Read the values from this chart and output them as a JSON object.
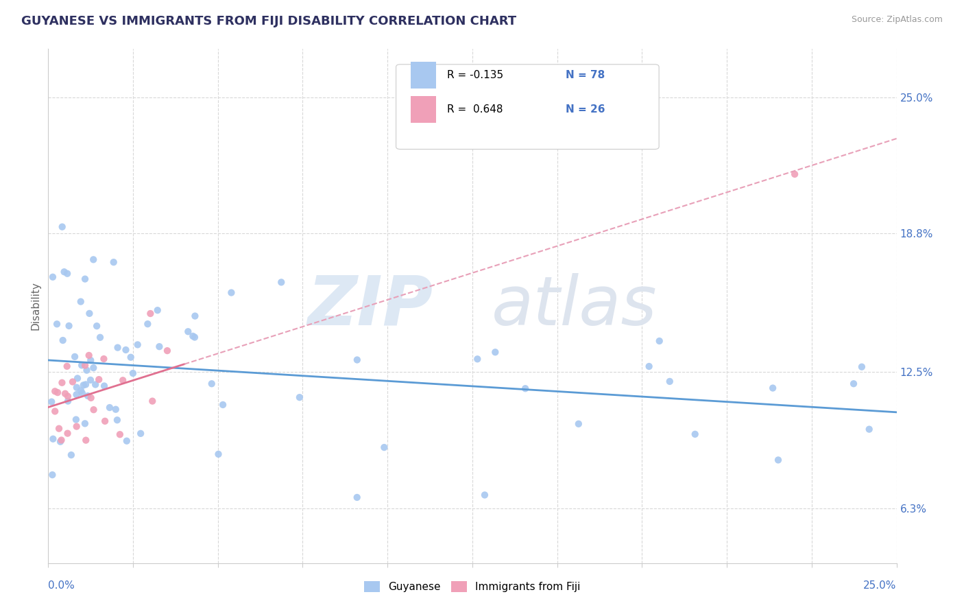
{
  "title": "GUYANESE VS IMMIGRANTS FROM FIJI DISABILITY CORRELATION CHART",
  "source": "Source: ZipAtlas.com",
  "ylabel": "Disability",
  "ytick_labels": [
    "6.3%",
    "12.5%",
    "18.8%",
    "25.0%"
  ],
  "ytick_values": [
    0.063,
    0.125,
    0.188,
    0.25
  ],
  "xrange": [
    0.0,
    0.25
  ],
  "yrange": [
    0.038,
    0.272
  ],
  "color_guyanese": "#a8c8f0",
  "color_fiji": "#f0a0b8",
  "color_text_blue": "#4472C4",
  "color_line_guyanese": "#5b9bd5",
  "color_line_fiji": "#e07090",
  "color_line_dashed": "#e8a0b8",
  "color_grid": "#d8d8d8",
  "color_title": "#2e3060",
  "color_source": "#999999",
  "color_ylabel": "#666666",
  "legend_box_color": "#f0f0f0",
  "legend_box_edge": "#cccccc",
  "watermark_zip_color": "#dde8f4",
  "watermark_atlas_color": "#dde4ee"
}
